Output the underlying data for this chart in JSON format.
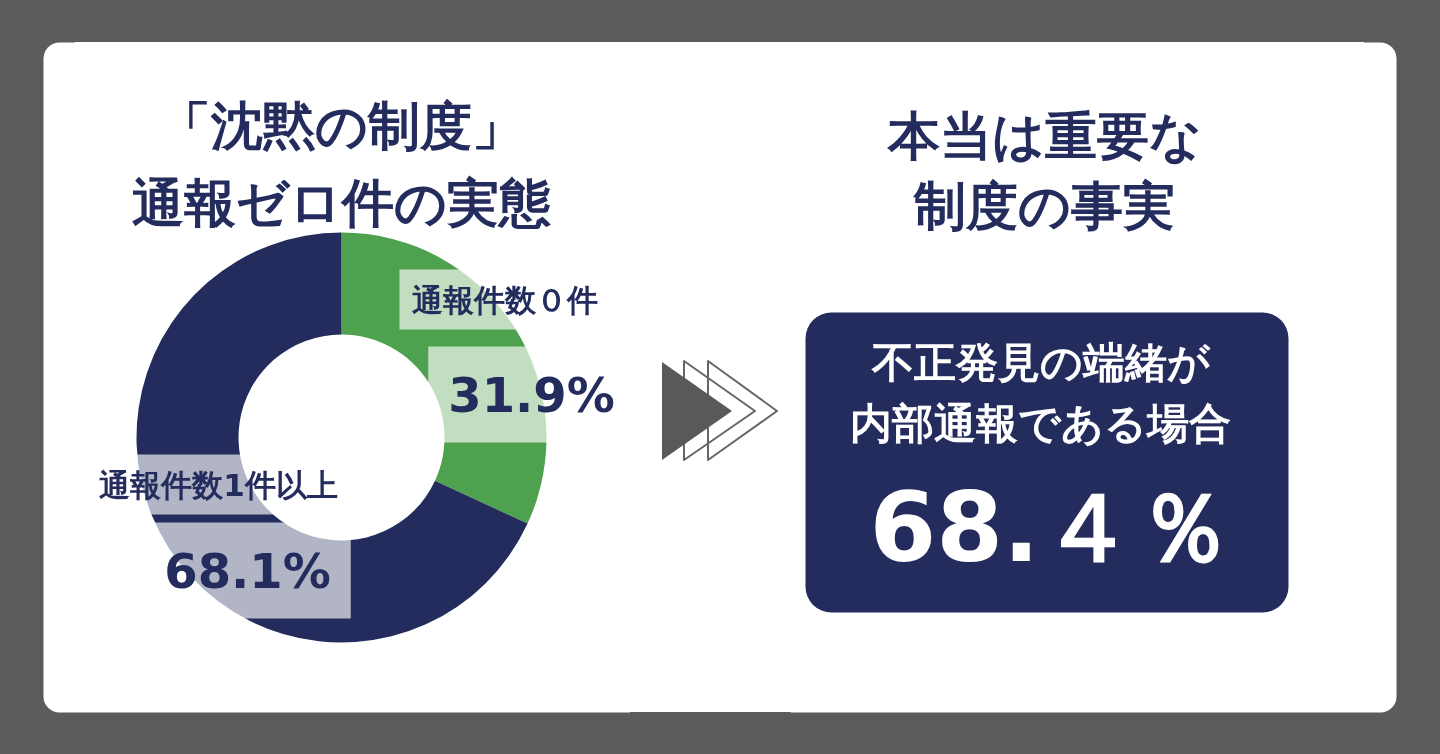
{
  "chart_data": [
    {
      "type": "donut",
      "title": "「沈黙の制度」通報ゼロ件の実態",
      "categories": [
        "通報件数０件",
        "通報件数1件以上"
      ],
      "values": [
        31.9,
        68.1
      ],
      "colors": [
        "#4ea24f",
        "#232c5c"
      ],
      "value_labels": [
        "31.9%",
        "68.1%"
      ]
    },
    {
      "type": "other",
      "title": "本当は重要な制度の事実",
      "annotations": [
        "不正発見の端緒が内部通報である場合",
        "68.４％"
      ]
    }
  ]
}
